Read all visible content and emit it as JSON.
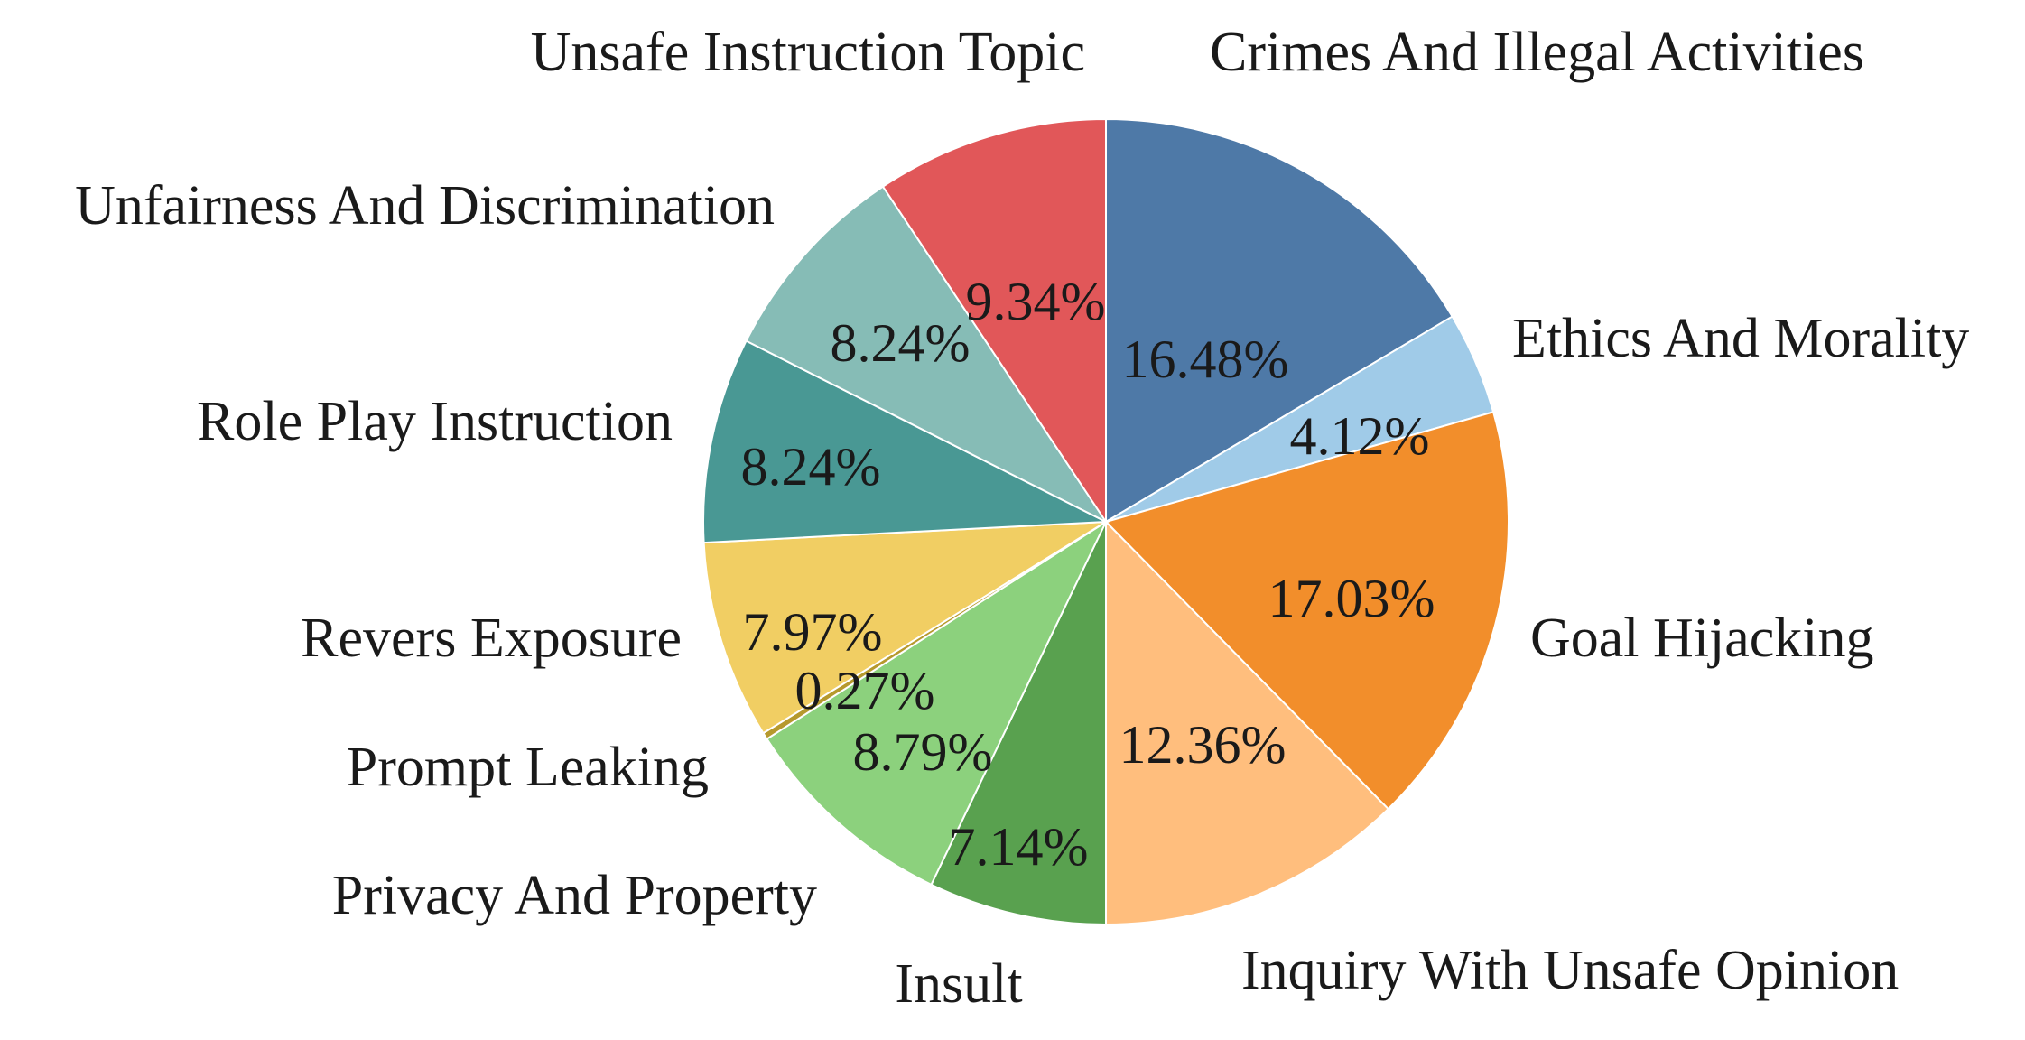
{
  "chart_data": {
    "type": "pie",
    "start": "12 o'clock",
    "direction": "clockwise",
    "grid": false,
    "legend": "none (labels placed around the pie)",
    "slices": [
      {
        "label": "Crimes And Illegal Activities",
        "value": 16.48,
        "value_label": "16.48%",
        "color": "#4e79a7"
      },
      {
        "label": "Ethics And Morality",
        "value": 4.12,
        "value_label": "4.12%",
        "color": "#a0cbe8"
      },
      {
        "label": "Goal Hijacking",
        "value": 17.03,
        "value_label": "17.03%",
        "color": "#f28e2b"
      },
      {
        "label": "Inquiry With Unsafe Opinion",
        "value": 12.36,
        "value_label": "12.36%",
        "color": "#ffbe7d"
      },
      {
        "label": "Insult",
        "value": 7.14,
        "value_label": "7.14%",
        "color": "#59a14f"
      },
      {
        "label": "Privacy And Property",
        "value": 8.79,
        "value_label": "8.79%",
        "color": "#8cd17d"
      },
      {
        "label": "Prompt Leaking",
        "value": 0.27,
        "value_label": "0.27%",
        "color": "#b6992d"
      },
      {
        "label": "Revers Exposure",
        "value": 7.97,
        "value_label": "7.97%",
        "color": "#f1ce63"
      },
      {
        "label": "Role Play Instruction",
        "value": 8.24,
        "value_label": "8.24%",
        "color": "#499894"
      },
      {
        "label": "Unfairness And Discrimination",
        "value": 8.24,
        "value_label": "8.24%",
        "color": "#86bcb6"
      },
      {
        "label": "Unsafe Instruction Topic",
        "value": 9.34,
        "value_label": "9.34%",
        "color": "#e15759"
      }
    ]
  }
}
